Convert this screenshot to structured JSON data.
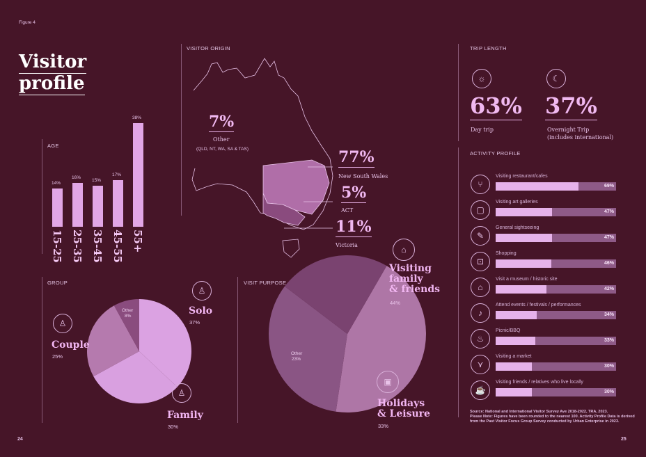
{
  "figure_label": "Figure 4",
  "title_line1": "Visitor",
  "title_line2": "profile",
  "age": {
    "section": "AGE",
    "chart_data": {
      "type": "bar",
      "categories": [
        "15-25",
        "25-35",
        "35-45",
        "45-55",
        "55+"
      ],
      "values": [
        14,
        16,
        15,
        17,
        38
      ],
      "value_labels": [
        "14%",
        "16%",
        "15%",
        "17%",
        "38%"
      ]
    }
  },
  "origin": {
    "section": "VISITOR ORIGIN",
    "other_pct": "7%",
    "other_label": "Other",
    "other_sub": "(QLD, NT, WA, SA & TAS)",
    "nsw_pct": "77%",
    "nsw_label": "New South Wales",
    "act_pct": "5%",
    "act_label": "ACT",
    "vic_pct": "11%",
    "vic_label": "Victoria"
  },
  "trip": {
    "section": "TRIP LENGTH",
    "day_pct": "63%",
    "day_label": "Day trip",
    "overnight_pct": "37%",
    "overnight_label1": "Overnight Trip",
    "overnight_label2": "(includes international)",
    "sun_icon": "sun-icon",
    "moon_icon": "moon-icon"
  },
  "activity": {
    "section": "ACTIVITY PROFILE",
    "chart_data": {
      "type": "bar",
      "categories": [
        "Visiting restaurant/cafes",
        "Visiting art galleries",
        "General sightseeing",
        "Shopping",
        "Visit a museum / historic site",
        "Attend events / festivals / performances",
        "Picnic/BBQ",
        "Visiting a market",
        "Visiting friends / relatives who live locally"
      ],
      "values": [
        69,
        47,
        47,
        46,
        42,
        34,
        33,
        30,
        30
      ],
      "value_labels": [
        "69%",
        "47%",
        "47%",
        "46%",
        "42%",
        "34%",
        "33%",
        "30%",
        "30%"
      ]
    }
  },
  "group": {
    "section": "GROUP",
    "chart_data": {
      "type": "pie",
      "categories": [
        "Solo",
        "Family",
        "Couple",
        "Other"
      ],
      "values": [
        37,
        30,
        25,
        8
      ],
      "value_labels": [
        "37%",
        "30%",
        "25%",
        "8%"
      ]
    }
  },
  "purpose": {
    "section": "VISIT PURPOSE",
    "chart_data": {
      "type": "pie",
      "categories": [
        "Visiting family & friends",
        "Holidays & Leisure",
        "Other"
      ],
      "values": [
        44,
        33,
        23
      ],
      "value_labels": [
        "44%",
        "33%",
        "23%"
      ]
    },
    "vff_line1": "Visiting",
    "vff_line2": "family",
    "vff_line3": "& friends",
    "hol_line1": "Holidays",
    "hol_line2": "& Leisure",
    "other_label": "Other"
  },
  "source_line1": "Source: National and International Visitor Survey Ave 2018-2022, TRA, 2023.",
  "source_line2": "Please Note: Figures have been rounded to the nearest 100. Activity Profile Data is derived",
  "source_line3": "from the Past Visitor Focus Group Survey conducted by Urban Enterprise in 2023.",
  "page_left": "24",
  "page_right": "25",
  "colors": {
    "background": "#461528",
    "accent": "#e2a6e6",
    "track": "#8e5a87"
  }
}
